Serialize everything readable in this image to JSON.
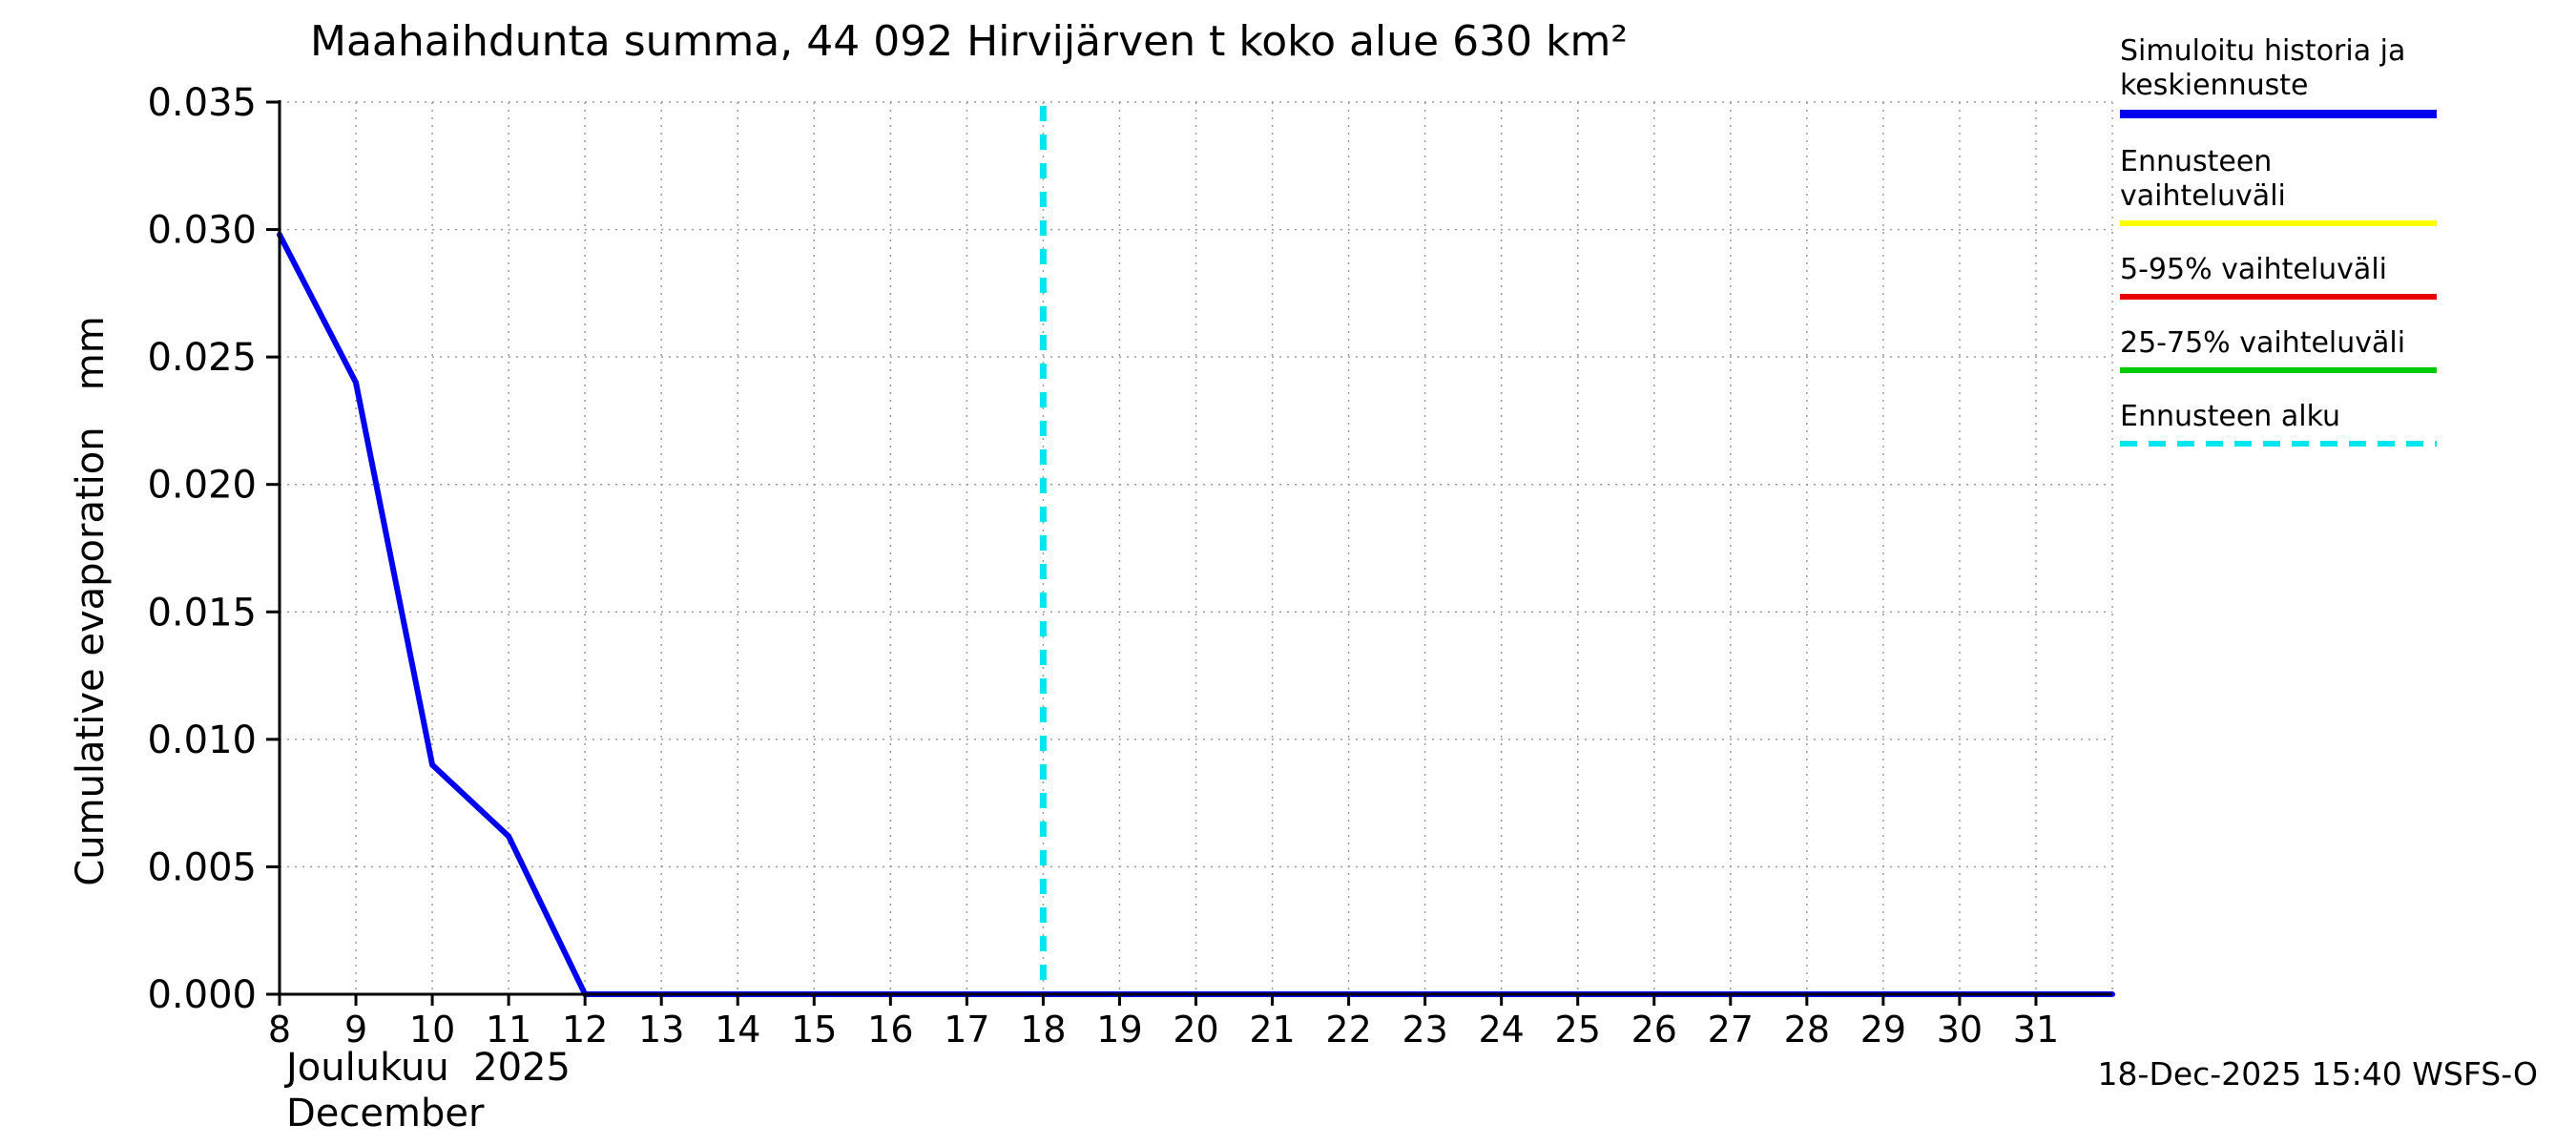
{
  "title": "Maahaihdunta summa, 44 092 Hirvijärven t koko alue 630 km²",
  "y_axis_label": "Cumulative evaporation   mm",
  "x_axis_label_fi": "Joulukuu  2025",
  "x_axis_label_en": "December",
  "timestamp": "18-Dec-2025 15:40 WSFS-O",
  "legend": {
    "items": [
      {
        "label": "Simuloitu historia ja keskiennuste",
        "color": "#0000ee",
        "dashed": false,
        "thick": true
      },
      {
        "label": "Ennusteen vaihteluväli",
        "color": "#ffff00",
        "dashed": false,
        "thick": false
      },
      {
        "label": "5-95% vaihteluväli",
        "color": "#e60000",
        "dashed": false,
        "thick": false
      },
      {
        "label": "25-75% vaihteluväli",
        "color": "#00cc00",
        "dashed": false,
        "thick": false
      },
      {
        "label": "Ennusteen alku",
        "color": "#00e5ee",
        "dashed": true,
        "thick": false
      }
    ]
  },
  "chart_data": {
    "type": "line",
    "title": "Maahaihdunta summa, 44 092 Hirvijärven t koko alue 630 km²",
    "xlabel": "Joulukuu 2025 / December",
    "ylabel": "Cumulative evaporation (mm)",
    "xlim": [
      8,
      32
    ],
    "ylim": [
      0,
      0.035
    ],
    "grid": true,
    "legend_position": "outside-top-right",
    "xticks": [
      8,
      9,
      10,
      11,
      12,
      13,
      14,
      15,
      16,
      17,
      18,
      19,
      20,
      21,
      22,
      23,
      24,
      25,
      26,
      27,
      28,
      29,
      30,
      31
    ],
    "ytick_values": [
      0,
      0.005,
      0.01,
      0.015,
      0.02,
      0.025,
      0.03,
      0.035
    ],
    "ytick_labels": [
      "0.000",
      "0.005",
      "0.010",
      "0.015",
      "0.020",
      "0.025",
      "0.030",
      "0.035"
    ],
    "series": [
      {
        "name": "Simuloitu historia ja keskiennuste",
        "color": "#0000ee",
        "points": [
          [
            8,
            0.0298
          ],
          [
            9,
            0.024
          ],
          [
            10,
            0.009
          ],
          [
            11,
            0.0062
          ],
          [
            12,
            0.0
          ],
          [
            32,
            0.0
          ]
        ]
      }
    ],
    "forecast_start_x": 18,
    "forecast_color": "#00e5ee"
  }
}
